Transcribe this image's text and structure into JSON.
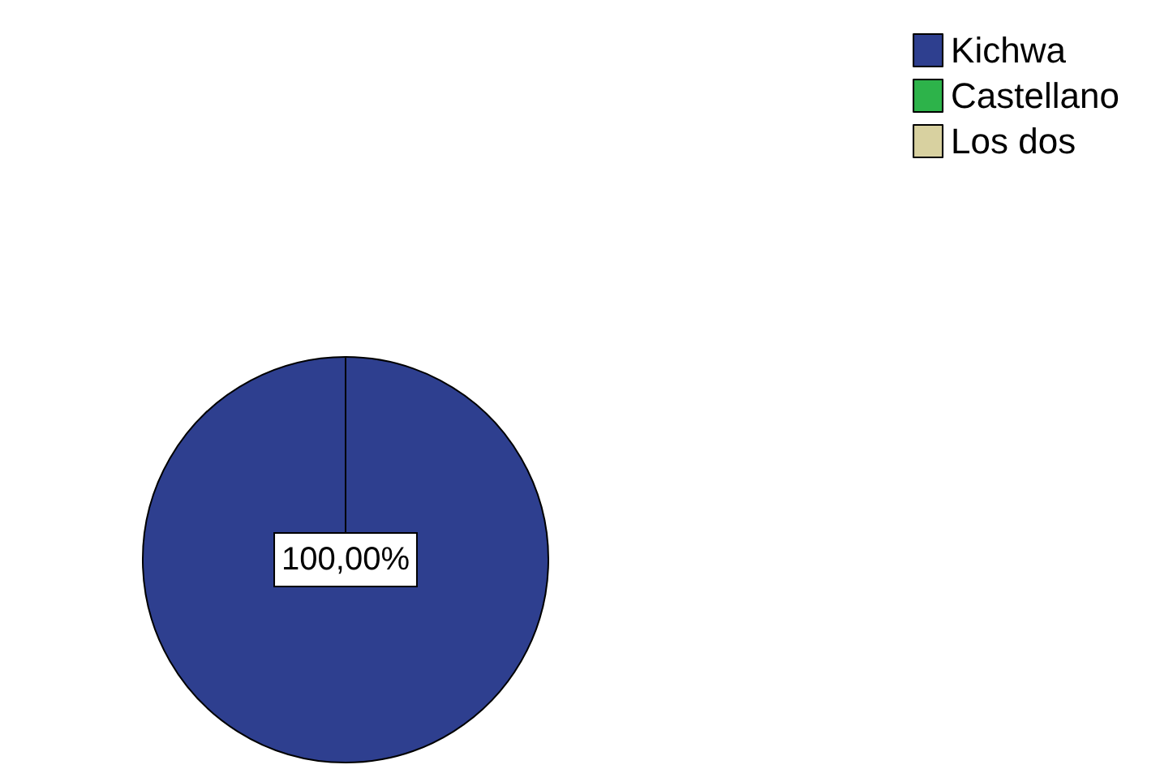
{
  "chart_data": {
    "type": "pie",
    "categories": [
      "Kichwa",
      "Castellano",
      "Los dos"
    ],
    "values": [
      100,
      0,
      0
    ],
    "colors": [
      "#2e3f8f",
      "#2db34a",
      "#d8d1a0"
    ],
    "value_labels": [
      "100,00%",
      null,
      null
    ],
    "legend": "top right"
  }
}
